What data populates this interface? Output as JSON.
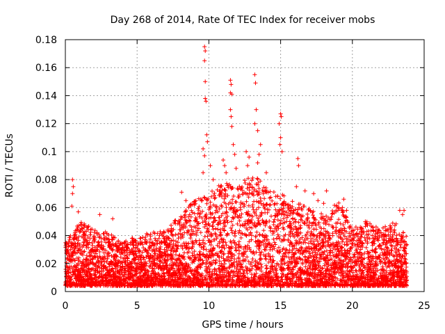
{
  "chart_data": {
    "type": "scatter",
    "title": "Day 268 of 2014, Rate Of TEC Index for receiver mobs",
    "xlabel": "GPS time / hours",
    "ylabel": "ROTI / TECUs",
    "xlim": [
      0,
      25
    ],
    "ylim": [
      0,
      0.18
    ],
    "xticks": [
      0,
      5,
      10,
      15,
      20,
      25
    ],
    "xtick_labels": [
      "0",
      "5",
      "10",
      "15",
      "20",
      "25"
    ],
    "yticks": [
      0,
      0.02,
      0.04,
      0.06,
      0.08,
      0.1,
      0.12,
      0.14,
      0.16,
      0.18
    ],
    "ytick_labels": [
      "0",
      "0.02",
      "0.04",
      "0.06",
      "0.08",
      "0.1",
      "0.12",
      "0.14",
      "0.16",
      "0.18"
    ],
    "grid": true,
    "marker": "+",
    "color": "#ff0000",
    "series": [
      {
        "name": "ROTI",
        "envelope": {
          "x": [
            0,
            1,
            2,
            3,
            4,
            5,
            6,
            7,
            8,
            9,
            10,
            11,
            12,
            13,
            14,
            15,
            16,
            17,
            18,
            19,
            20,
            21,
            22,
            23,
            23.8
          ],
          "y_max": [
            0.035,
            0.05,
            0.045,
            0.042,
            0.035,
            0.04,
            0.042,
            0.045,
            0.055,
            0.065,
            0.07,
            0.08,
            0.075,
            0.085,
            0.075,
            0.07,
            0.065,
            0.06,
            0.055,
            0.065,
            0.045,
            0.05,
            0.045,
            0.05,
            0.04
          ]
        },
        "peaks": [
          {
            "x": 0.5,
            "y": 0.08
          },
          {
            "x": 0.55,
            "y": 0.075
          },
          {
            "x": 0.5,
            "y": 0.07
          },
          {
            "x": 0.45,
            "y": 0.061
          },
          {
            "x": 0.9,
            "y": 0.057
          },
          {
            "x": 2.4,
            "y": 0.055
          },
          {
            "x": 3.3,
            "y": 0.052
          },
          {
            "x": 8.1,
            "y": 0.071
          },
          {
            "x": 8.4,
            "y": 0.065
          },
          {
            "x": 9.7,
            "y": 0.175
          },
          {
            "x": 9.75,
            "y": 0.172
          },
          {
            "x": 9.7,
            "y": 0.165
          },
          {
            "x": 9.75,
            "y": 0.15
          },
          {
            "x": 9.75,
            "y": 0.138
          },
          {
            "x": 9.8,
            "y": 0.136
          },
          {
            "x": 9.85,
            "y": 0.112
          },
          {
            "x": 9.9,
            "y": 0.107
          },
          {
            "x": 9.6,
            "y": 0.102
          },
          {
            "x": 9.7,
            "y": 0.097
          },
          {
            "x": 9.6,
            "y": 0.085
          },
          {
            "x": 10.1,
            "y": 0.09
          },
          {
            "x": 10.3,
            "y": 0.08
          },
          {
            "x": 11.0,
            "y": 0.094
          },
          {
            "x": 11.1,
            "y": 0.09
          },
          {
            "x": 11.2,
            "y": 0.085
          },
          {
            "x": 11.5,
            "y": 0.151
          },
          {
            "x": 11.55,
            "y": 0.148
          },
          {
            "x": 11.5,
            "y": 0.142
          },
          {
            "x": 11.6,
            "y": 0.141
          },
          {
            "x": 11.5,
            "y": 0.13
          },
          {
            "x": 11.55,
            "y": 0.125
          },
          {
            "x": 11.6,
            "y": 0.118
          },
          {
            "x": 11.7,
            "y": 0.105
          },
          {
            "x": 11.8,
            "y": 0.098
          },
          {
            "x": 11.9,
            "y": 0.088
          },
          {
            "x": 12.6,
            "y": 0.1
          },
          {
            "x": 12.8,
            "y": 0.096
          },
          {
            "x": 12.7,
            "y": 0.09
          },
          {
            "x": 13.2,
            "y": 0.155
          },
          {
            "x": 13.25,
            "y": 0.149
          },
          {
            "x": 13.3,
            "y": 0.13
          },
          {
            "x": 13.2,
            "y": 0.12
          },
          {
            "x": 13.4,
            "y": 0.115
          },
          {
            "x": 13.6,
            "y": 0.105
          },
          {
            "x": 13.5,
            "y": 0.098
          },
          {
            "x": 13.4,
            "y": 0.092
          },
          {
            "x": 14.0,
            "y": 0.085
          },
          {
            "x": 15.0,
            "y": 0.127
          },
          {
            "x": 15.05,
            "y": 0.125
          },
          {
            "x": 14.9,
            "y": 0.12
          },
          {
            "x": 15.0,
            "y": 0.11
          },
          {
            "x": 14.95,
            "y": 0.105
          },
          {
            "x": 15.1,
            "y": 0.1
          },
          {
            "x": 16.2,
            "y": 0.095
          },
          {
            "x": 16.25,
            "y": 0.09
          },
          {
            "x": 16.1,
            "y": 0.075
          },
          {
            "x": 16.7,
            "y": 0.072
          },
          {
            "x": 17.3,
            "y": 0.07
          },
          {
            "x": 17.6,
            "y": 0.065
          },
          {
            "x": 18.2,
            "y": 0.072
          },
          {
            "x": 18.0,
            "y": 0.063
          },
          {
            "x": 19.4,
            "y": 0.066
          },
          {
            "x": 19.3,
            "y": 0.06
          },
          {
            "x": 19.6,
            "y": 0.058
          },
          {
            "x": 20.9,
            "y": 0.05
          },
          {
            "x": 23.3,
            "y": 0.058
          },
          {
            "x": 23.6,
            "y": 0.058
          },
          {
            "x": 23.5,
            "y": 0.055
          }
        ]
      }
    ]
  }
}
